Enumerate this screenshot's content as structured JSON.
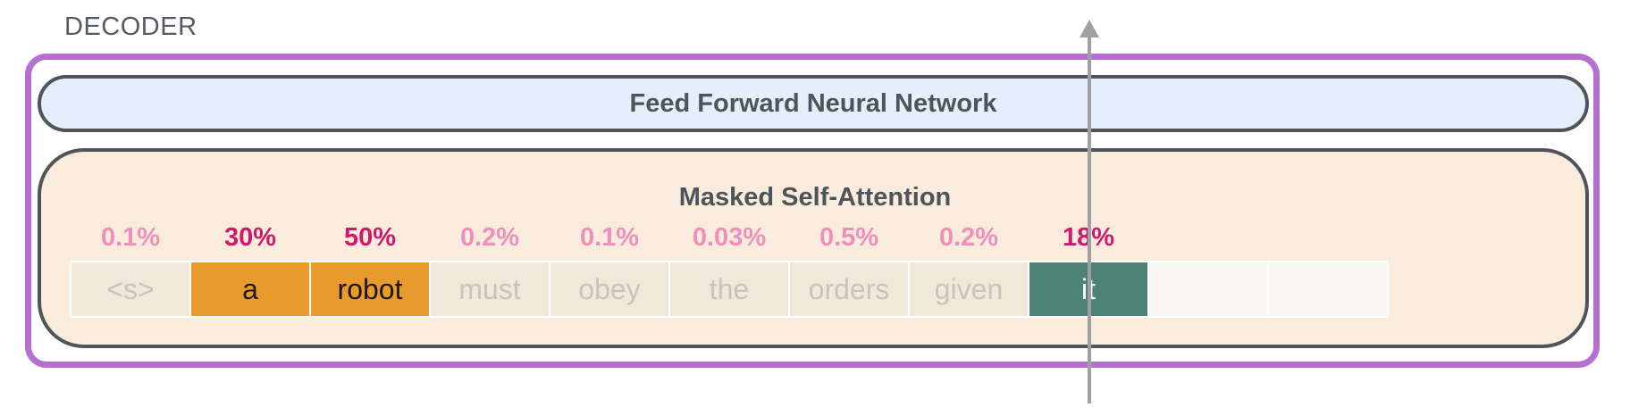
{
  "decoder": {
    "label": "DECODER"
  },
  "ffnn": {
    "label": "Feed Forward Neural Network"
  },
  "attention": {
    "title": "Masked Self-Attention",
    "tokens": [
      {
        "text": "<s>",
        "weight": "0.1%",
        "state": "faded"
      },
      {
        "text": "a",
        "weight": "30%",
        "state": "highlight"
      },
      {
        "text": "robot",
        "weight": "50%",
        "state": "highlight"
      },
      {
        "text": "must",
        "weight": "0.2%",
        "state": "faded"
      },
      {
        "text": "obey",
        "weight": "0.1%",
        "state": "faded"
      },
      {
        "text": "the",
        "weight": "0.03%",
        "state": "faded"
      },
      {
        "text": "orders",
        "weight": "0.5%",
        "state": "faded"
      },
      {
        "text": "given",
        "weight": "0.2%",
        "state": "faded"
      },
      {
        "text": "it",
        "weight": "18%",
        "state": "current"
      },
      {
        "text": "",
        "weight": "",
        "state": "empty"
      },
      {
        "text": "",
        "weight": "",
        "state": "empty"
      }
    ]
  },
  "colors": {
    "decoder_border": "#b46fcf",
    "ffnn_fill": "#e4effb",
    "attention_fill": "#f9ecdd",
    "weight_low": "#ef8fbb",
    "weight_high": "#d0196b",
    "token_highlight": "#e89a2c",
    "token_current": "#4d8374",
    "token_faded": "#eeeadb",
    "arrow": "#9ea0a3"
  }
}
